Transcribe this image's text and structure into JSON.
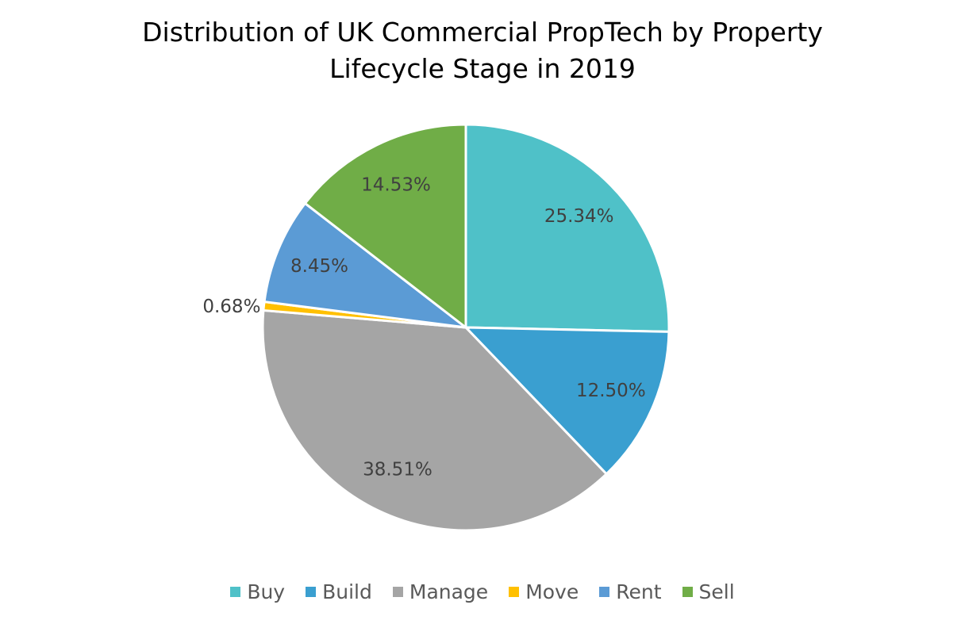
{
  "chart_data": {
    "type": "pie",
    "title_lines": [
      "Distribution of UK Commercial PropTech by Property",
      "Lifecycle Stage in 2019"
    ],
    "categories": [
      "Buy",
      "Build",
      "Manage",
      "Move",
      "Rent",
      "Sell"
    ],
    "values": [
      25.34,
      12.5,
      38.51,
      0.68,
      8.45,
      14.53
    ],
    "labels": [
      "25.34%",
      "12.50%",
      "38.51%",
      "0.68%",
      "8.45%",
      "14.53%"
    ],
    "colors": [
      "#4FC1C8",
      "#3A9FD0",
      "#A5A5A5",
      "#FFC000",
      "#5B9BD5",
      "#70AD47"
    ],
    "legend_position": "bottom",
    "start_angle": "top, clockwise"
  }
}
